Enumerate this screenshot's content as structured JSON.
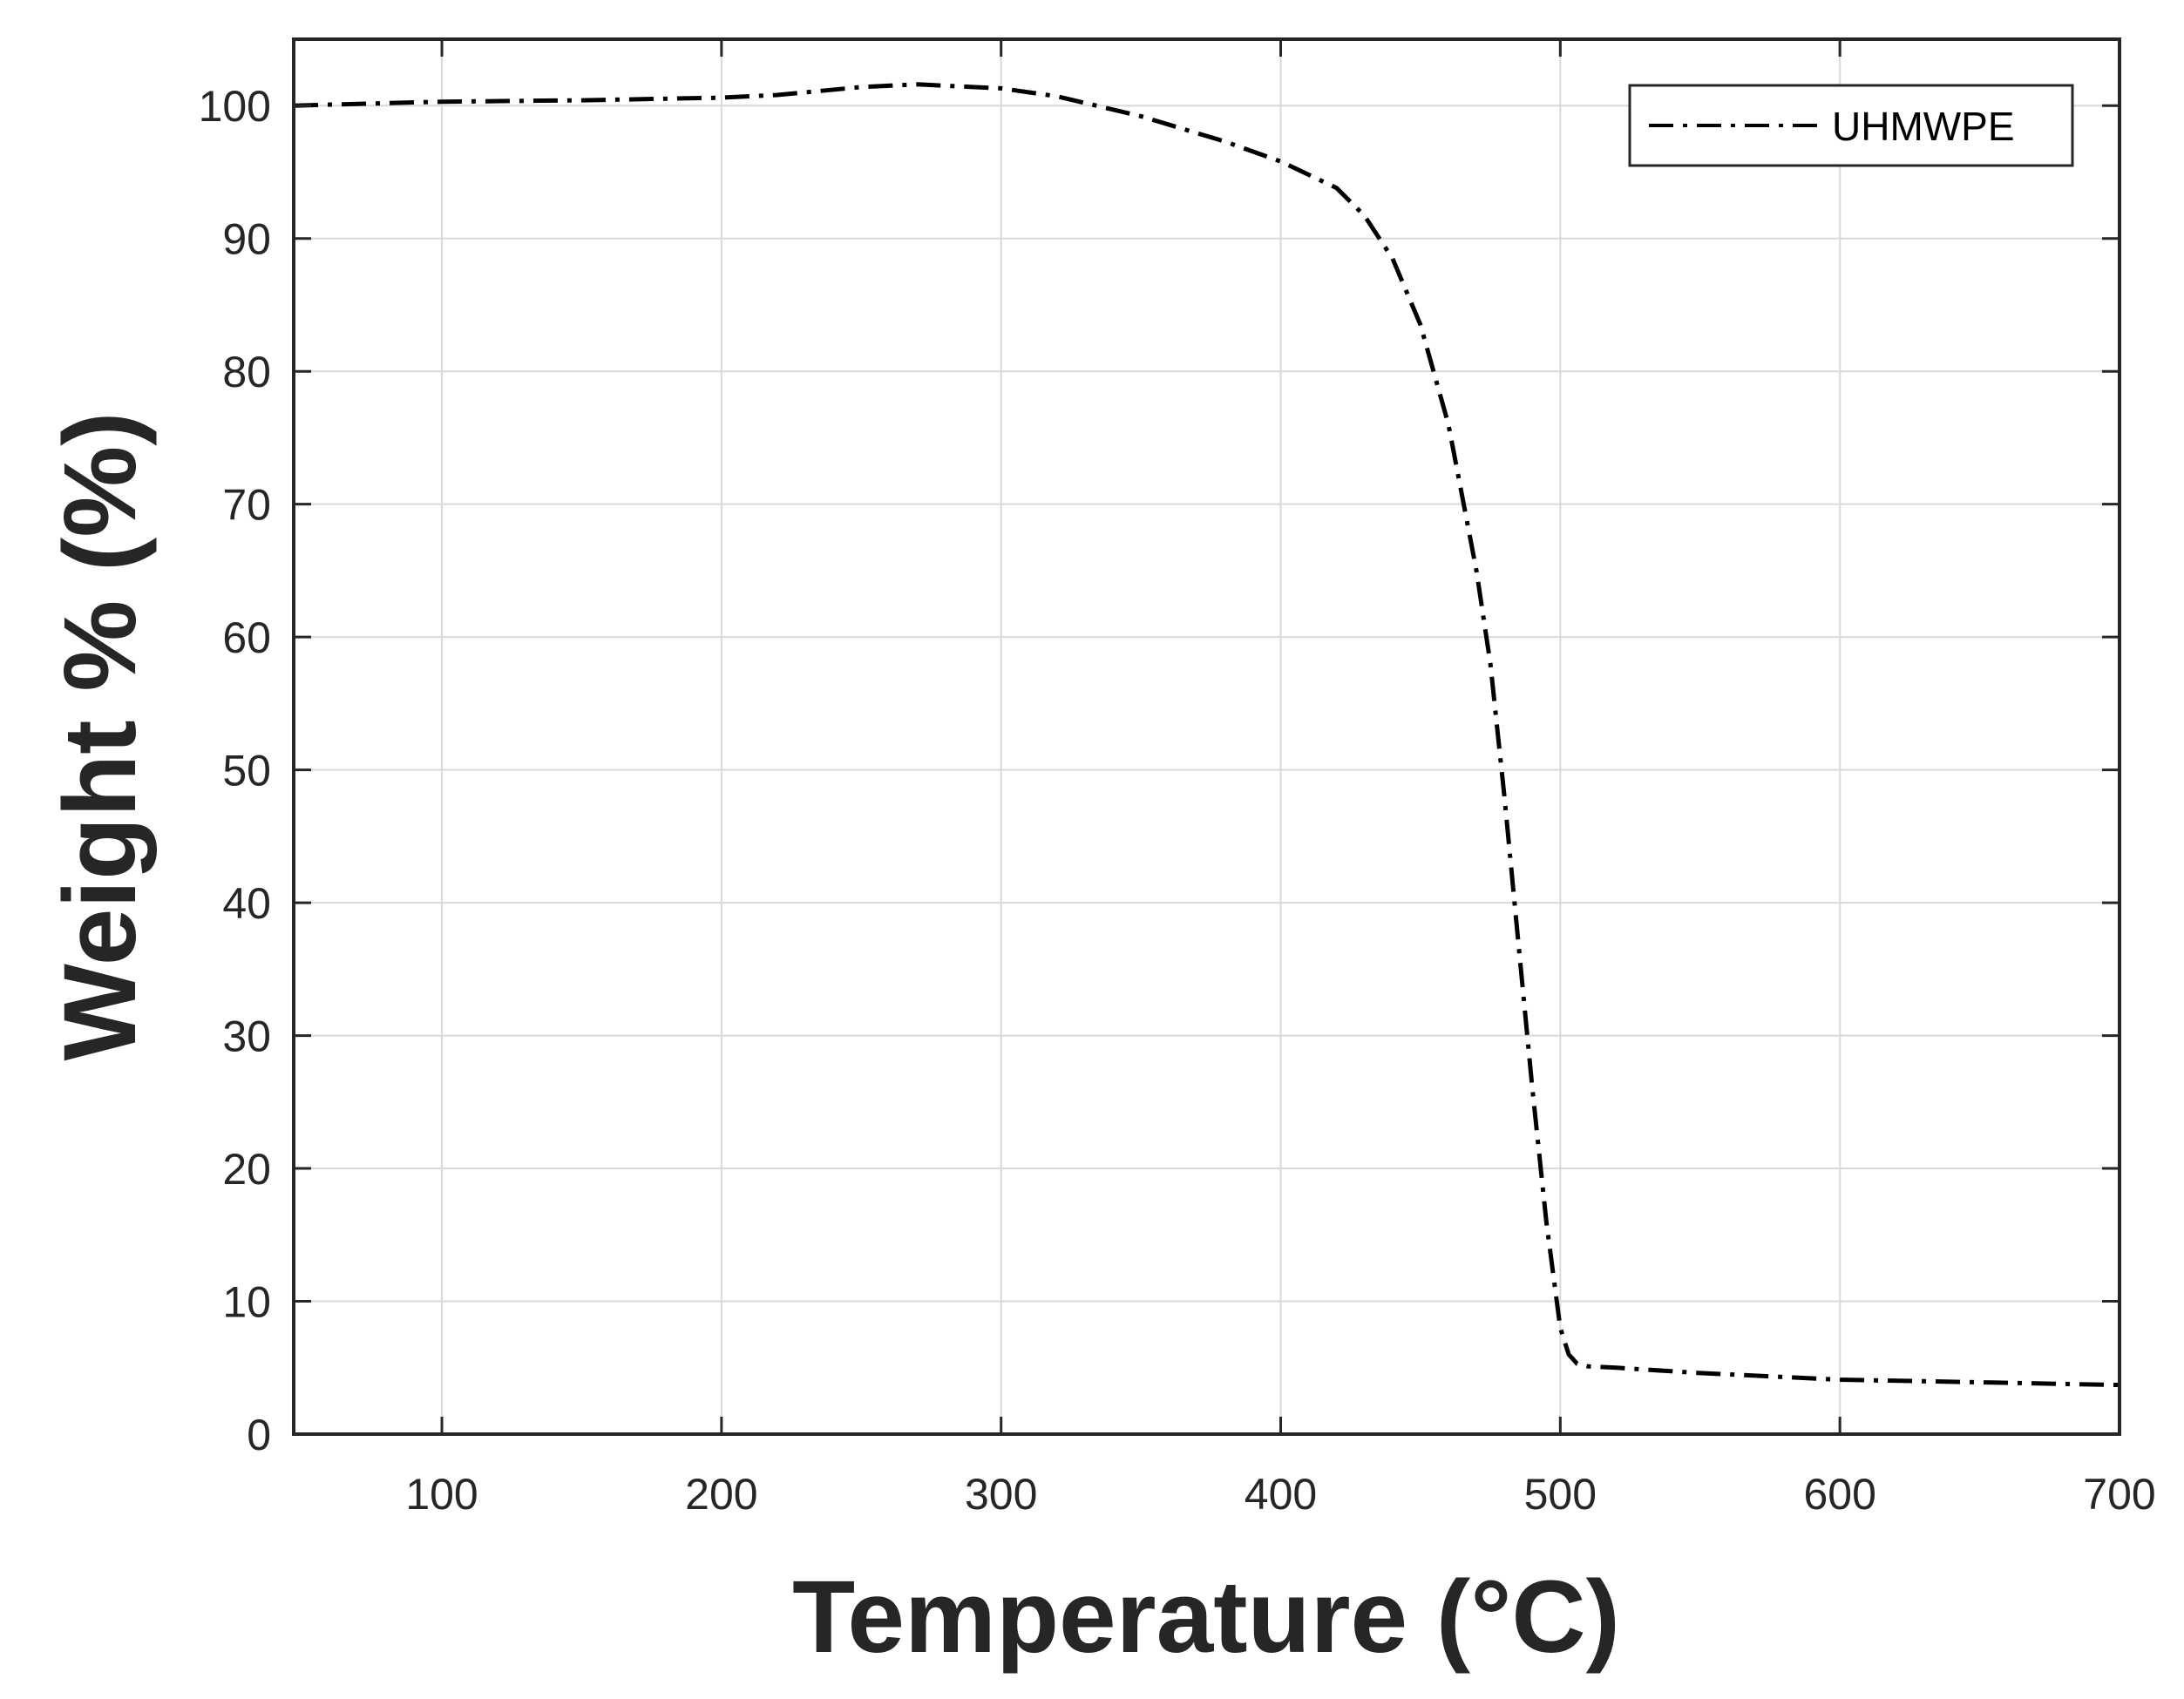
{
  "chart_data": {
    "type": "line",
    "title": "",
    "xlabel": "Temperature (°C)",
    "ylabel": "Weight % (%)",
    "xlim": [
      47,
      700
    ],
    "ylim": [
      0,
      105
    ],
    "xticks": [
      100,
      200,
      300,
      400,
      500,
      600,
      700
    ],
    "yticks": [
      0,
      10,
      20,
      30,
      40,
      50,
      60,
      70,
      80,
      90,
      100
    ],
    "grid": true,
    "legend_position": "top-right",
    "series": [
      {
        "name": "UHMWPE",
        "line_style": "dash-dot",
        "color": "#000000",
        "x": [
          47,
          100,
          150,
          200,
          220,
          250,
          270,
          300,
          320,
          350,
          380,
          400,
          420,
          430,
          440,
          450,
          460,
          470,
          475,
          480,
          485,
          490,
          495,
          500,
          503,
          506,
          510,
          520,
          550,
          600,
          650,
          700
        ],
        "y": [
          100.0,
          100.3,
          100.4,
          100.6,
          100.8,
          101.4,
          101.6,
          101.3,
          100.7,
          99.2,
          97.3,
          95.8,
          93.8,
          91.7,
          88.5,
          83.5,
          76.0,
          65.0,
          58.0,
          48.0,
          37.0,
          26.0,
          16.0,
          8.0,
          6.0,
          5.3,
          5.1,
          5.0,
          4.6,
          4.1,
          3.9,
          3.7
        ]
      }
    ]
  }
}
